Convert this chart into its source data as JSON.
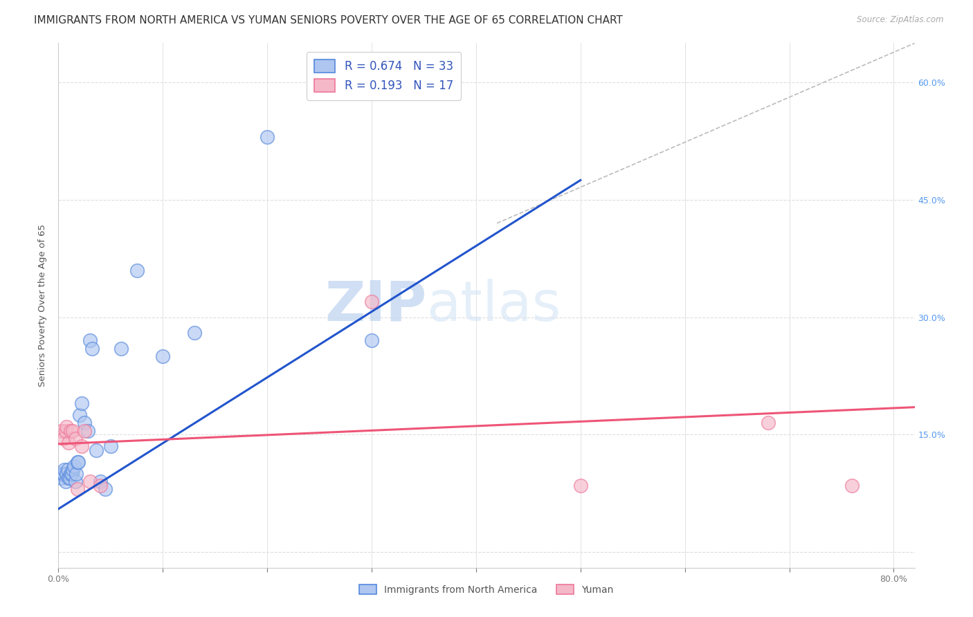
{
  "title": "IMMIGRANTS FROM NORTH AMERICA VS YUMAN SENIORS POVERTY OVER THE AGE OF 65 CORRELATION CHART",
  "source": "Source: ZipAtlas.com",
  "ylabel": "Seniors Poverty Over the Age of 65",
  "xlim": [
    0.0,
    0.82
  ],
  "ylim": [
    -0.02,
    0.65
  ],
  "blue_R": "0.674",
  "blue_N": "33",
  "pink_R": "0.193",
  "pink_N": "17",
  "blue_fill": "#aec6f0",
  "pink_fill": "#f4b8c8",
  "blue_edge": "#5588dd",
  "pink_edge": "#ee7799",
  "blue_line_color": "#2255cc",
  "pink_line_color": "#ee5577",
  "diagonal_color": "#bbbbbb",
  "watermark_zip": "ZIP",
  "watermark_atlas": "atlas",
  "legend_label_blue": "Immigrants from North America",
  "legend_label_pink": "Yuman",
  "blue_scatter_x": [
    0.003,
    0.004,
    0.005,
    0.006,
    0.007,
    0.008,
    0.009,
    0.01,
    0.011,
    0.012,
    0.013,
    0.014,
    0.015,
    0.016,
    0.017,
    0.018,
    0.019,
    0.02,
    0.022,
    0.025,
    0.028,
    0.03,
    0.032,
    0.036,
    0.04,
    0.045,
    0.05,
    0.06,
    0.075,
    0.1,
    0.13,
    0.2,
    0.3
  ],
  "blue_scatter_y": [
    0.095,
    0.1,
    0.1,
    0.105,
    0.09,
    0.1,
    0.105,
    0.095,
    0.095,
    0.1,
    0.1,
    0.105,
    0.11,
    0.09,
    0.1,
    0.115,
    0.115,
    0.175,
    0.19,
    0.165,
    0.155,
    0.27,
    0.26,
    0.13,
    0.09,
    0.08,
    0.135,
    0.26,
    0.36,
    0.25,
    0.28,
    0.53,
    0.27
  ],
  "pink_scatter_x": [
    0.003,
    0.005,
    0.007,
    0.008,
    0.01,
    0.012,
    0.014,
    0.016,
    0.018,
    0.022,
    0.025,
    0.03,
    0.04,
    0.3,
    0.5,
    0.68,
    0.76
  ],
  "pink_scatter_y": [
    0.155,
    0.145,
    0.155,
    0.16,
    0.14,
    0.155,
    0.155,
    0.145,
    0.08,
    0.135,
    0.155,
    0.09,
    0.085,
    0.32,
    0.085,
    0.165,
    0.085
  ],
  "blue_line_x0": 0.0,
  "blue_line_y0": 0.055,
  "blue_line_x1": 0.5,
  "blue_line_y1": 0.475,
  "pink_line_x0": 0.0,
  "pink_line_y0": 0.138,
  "pink_line_x1": 0.82,
  "pink_line_y1": 0.185,
  "diag_line_x0": 0.42,
  "diag_line_y0": 0.42,
  "diag_line_x1": 0.82,
  "diag_line_y1": 0.65,
  "background_color": "#ffffff",
  "grid_color": "#dddddd",
  "title_fontsize": 11,
  "tick_fontsize": 9,
  "scatter_size": 200,
  "right_tick_color": "#5599ee"
}
